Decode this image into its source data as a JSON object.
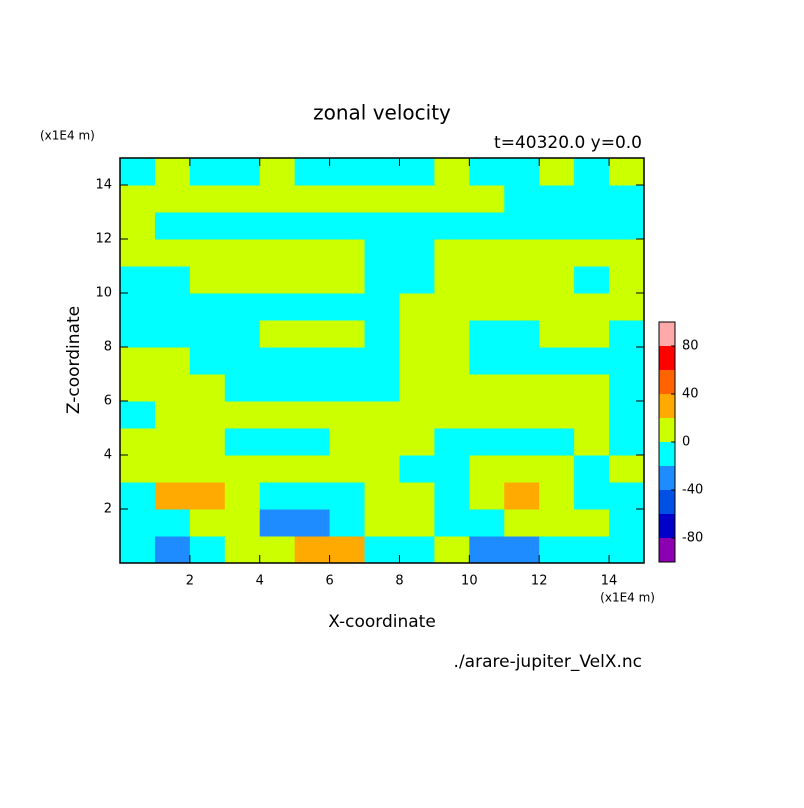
{
  "chart_data": {
    "type": "contour",
    "title": "zonal velocity",
    "subtitle": "t=40320.0 y=0.0",
    "x_label": "X-coordinate",
    "y_label": "Z-coordinate",
    "x_unit": "(x1E4 m)",
    "y_unit": "(x1E4 m)",
    "source": "./arare-jupiter_VelX.nc",
    "xlim": [
      0,
      15
    ],
    "ylim": [
      0,
      15
    ],
    "xticks": [
      2,
      4,
      6,
      8,
      10,
      12,
      14
    ],
    "yticks": [
      2,
      4,
      6,
      8,
      10,
      12,
      14
    ],
    "x": [
      0,
      1,
      2,
      3,
      4,
      5,
      6,
      7,
      8,
      9,
      10,
      11,
      12,
      13,
      14,
      15
    ],
    "y": [
      0,
      1,
      2,
      3,
      4,
      5,
      6,
      7,
      8,
      9,
      10,
      11,
      12,
      13,
      14,
      15
    ],
    "z": [
      [
        -10,
        -30,
        -10,
        10,
        10,
        30,
        30,
        -10,
        -10,
        10,
        -30,
        -30,
        -10,
        -10,
        -10
      ],
      [
        -10,
        -10,
        10,
        10,
        -30,
        -30,
        -10,
        10,
        10,
        -10,
        -10,
        10,
        10,
        10,
        -10
      ],
      [
        -10,
        30,
        30,
        10,
        -10,
        -10,
        -10,
        10,
        10,
        -10,
        10,
        30,
        10,
        -10,
        -10
      ],
      [
        10,
        10,
        10,
        10,
        10,
        10,
        10,
        10,
        -10,
        -10,
        10,
        10,
        10,
        -10,
        10
      ],
      [
        10,
        10,
        10,
        -10,
        -10,
        -10,
        10,
        10,
        10,
        -10,
        -10,
        -10,
        -10,
        10,
        -10
      ],
      [
        -10,
        10,
        10,
        10,
        10,
        10,
        10,
        10,
        10,
        10,
        10,
        10,
        10,
        10,
        -10
      ],
      [
        10,
        10,
        10,
        -10,
        -10,
        -10,
        -10,
        -10,
        10,
        10,
        10,
        10,
        10,
        10,
        -10
      ],
      [
        10,
        10,
        -10,
        -10,
        -10,
        -10,
        -10,
        -10,
        10,
        10,
        -10,
        -10,
        -10,
        -10,
        -10
      ],
      [
        -10,
        -10,
        -10,
        -10,
        10,
        10,
        10,
        -10,
        10,
        10,
        -10,
        -10,
        10,
        10,
        -10
      ],
      [
        -10,
        -10,
        -10,
        -10,
        -10,
        -10,
        -10,
        -10,
        10,
        10,
        10,
        10,
        10,
        10,
        10
      ],
      [
        -10,
        -10,
        10,
        10,
        10,
        10,
        10,
        -10,
        -10,
        10,
        10,
        10,
        10,
        -10,
        10
      ],
      [
        10,
        10,
        10,
        10,
        10,
        10,
        10,
        -10,
        -10,
        10,
        10,
        10,
        10,
        10,
        10
      ],
      [
        10,
        -10,
        -10,
        -10,
        -10,
        -10,
        -10,
        -10,
        -10,
        -10,
        -10,
        -10,
        -10,
        -10,
        -10
      ],
      [
        10,
        10,
        10,
        10,
        10,
        10,
        10,
        10,
        10,
        10,
        10,
        -10,
        -10,
        -10,
        -10
      ],
      [
        -10,
        10,
        -10,
        -10,
        10,
        -10,
        -10,
        -10,
        -10,
        10,
        -10,
        -10,
        10,
        -10,
        10
      ]
    ],
    "levels": [
      -100,
      -80,
      -60,
      -40,
      -20,
      0,
      20,
      40,
      60,
      80,
      100
    ],
    "colors": [
      "#8b00b0",
      "#0000c8",
      "#0050e6",
      "#1e8cff",
      "#00ffff",
      "#ccff00",
      "#ffaa00",
      "#ff6400",
      "#ff0000",
      "#ffaaaa"
    ],
    "cbticks": [
      -80,
      -40,
      0,
      40,
      80
    ]
  }
}
